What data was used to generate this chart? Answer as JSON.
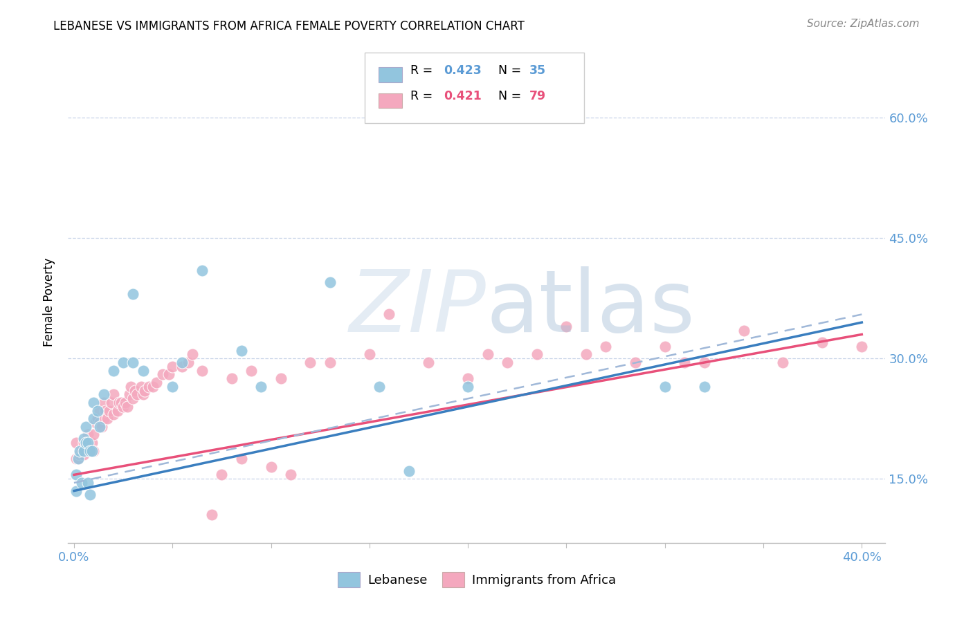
{
  "title": "LEBANESE VS IMMIGRANTS FROM AFRICA FEMALE POVERTY CORRELATION CHART",
  "source": "Source: ZipAtlas.com",
  "ylabel": "Female Poverty",
  "xlim": [
    -0.003,
    0.412
  ],
  "ylim": [
    0.07,
    0.67
  ],
  "yticks": [
    0.15,
    0.3,
    0.45,
    0.6
  ],
  "ytick_labels": [
    "15.0%",
    "30.0%",
    "45.0%",
    "60.0%"
  ],
  "xticks": [
    0.0,
    0.05,
    0.1,
    0.15,
    0.2,
    0.25,
    0.3,
    0.35,
    0.4
  ],
  "xtick_show": [
    "0.0%",
    "",
    "",
    "",
    "",
    "",
    "",
    "",
    "40.0%"
  ],
  "legend_label1": "Lebanese",
  "legend_label2": "Immigrants from Africa",
  "blue_scatter": "#92c5de",
  "pink_scatter": "#f4a8be",
  "blue_line": "#3a7ebf",
  "blue_dash": "#a0b8d8",
  "pink_line": "#e8507a",
  "axis_label_color": "#5b9bd5",
  "grid_color": "#c8d4e8",
  "lebanese_x": [
    0.001,
    0.001,
    0.002,
    0.003,
    0.004,
    0.005,
    0.005,
    0.006,
    0.006,
    0.007,
    0.007,
    0.008,
    0.008,
    0.009,
    0.01,
    0.01,
    0.012,
    0.013,
    0.015,
    0.02,
    0.025,
    0.03,
    0.03,
    0.035,
    0.05,
    0.055,
    0.065,
    0.085,
    0.095,
    0.13,
    0.155,
    0.17,
    0.2,
    0.3,
    0.32
  ],
  "lebanese_y": [
    0.155,
    0.135,
    0.175,
    0.185,
    0.145,
    0.2,
    0.185,
    0.215,
    0.195,
    0.195,
    0.145,
    0.185,
    0.13,
    0.185,
    0.225,
    0.245,
    0.235,
    0.215,
    0.255,
    0.285,
    0.295,
    0.295,
    0.38,
    0.285,
    0.265,
    0.295,
    0.41,
    0.31,
    0.265,
    0.395,
    0.265,
    0.16,
    0.265,
    0.265,
    0.265
  ],
  "africa_x": [
    0.001,
    0.001,
    0.002,
    0.003,
    0.004,
    0.005,
    0.005,
    0.006,
    0.007,
    0.007,
    0.008,
    0.009,
    0.01,
    0.01,
    0.011,
    0.012,
    0.013,
    0.013,
    0.014,
    0.015,
    0.015,
    0.016,
    0.017,
    0.018,
    0.019,
    0.02,
    0.02,
    0.022,
    0.023,
    0.024,
    0.025,
    0.026,
    0.027,
    0.028,
    0.029,
    0.03,
    0.031,
    0.032,
    0.034,
    0.035,
    0.036,
    0.038,
    0.04,
    0.042,
    0.045,
    0.048,
    0.05,
    0.055,
    0.058,
    0.06,
    0.065,
    0.07,
    0.075,
    0.08,
    0.085,
    0.09,
    0.1,
    0.105,
    0.11,
    0.12,
    0.13,
    0.15,
    0.16,
    0.18,
    0.2,
    0.21,
    0.22,
    0.235,
    0.25,
    0.26,
    0.27,
    0.285,
    0.3,
    0.31,
    0.32,
    0.34,
    0.36,
    0.38,
    0.4
  ],
  "africa_y": [
    0.195,
    0.175,
    0.175,
    0.18,
    0.185,
    0.18,
    0.195,
    0.195,
    0.19,
    0.205,
    0.185,
    0.195,
    0.185,
    0.205,
    0.22,
    0.225,
    0.22,
    0.235,
    0.215,
    0.225,
    0.245,
    0.235,
    0.225,
    0.235,
    0.245,
    0.23,
    0.255,
    0.235,
    0.245,
    0.245,
    0.24,
    0.245,
    0.24,
    0.255,
    0.265,
    0.25,
    0.26,
    0.255,
    0.265,
    0.255,
    0.26,
    0.265,
    0.265,
    0.27,
    0.28,
    0.28,
    0.29,
    0.29,
    0.295,
    0.305,
    0.285,
    0.105,
    0.155,
    0.275,
    0.175,
    0.285,
    0.165,
    0.275,
    0.155,
    0.295,
    0.295,
    0.305,
    0.355,
    0.295,
    0.275,
    0.305,
    0.295,
    0.305,
    0.34,
    0.305,
    0.315,
    0.295,
    0.315,
    0.295,
    0.295,
    0.335,
    0.295,
    0.32,
    0.315
  ],
  "trend_leb_x0": 0.0,
  "trend_leb_y0": 0.135,
  "trend_leb_x1": 0.4,
  "trend_leb_y1": 0.345,
  "trend_afr_x0": 0.0,
  "trend_afr_y0": 0.155,
  "trend_afr_x1": 0.4,
  "trend_afr_y1": 0.33,
  "trend_dash_x0": 0.0,
  "trend_dash_y0": 0.145,
  "trend_dash_x1": 0.4,
  "trend_dash_y1": 0.355
}
